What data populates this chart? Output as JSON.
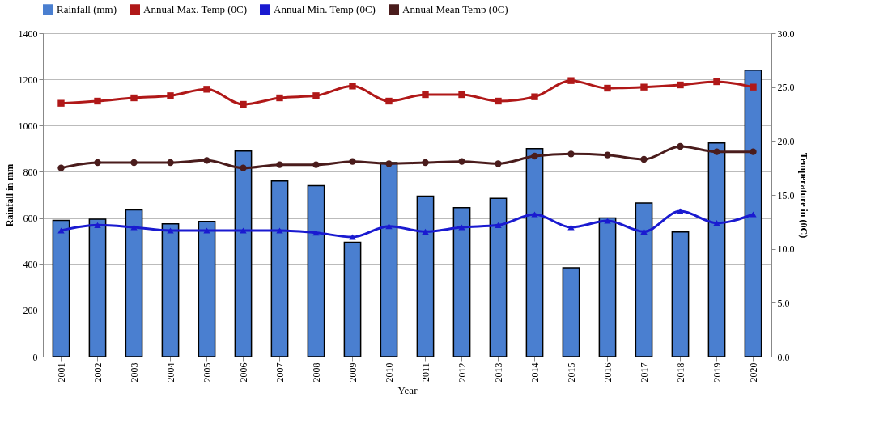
{
  "chart_data": {
    "type": "bar",
    "xlabel": "Year",
    "ylabel": "Rainfall in mm",
    "y2label": "Temperature in (0C)",
    "categories": [
      "2001",
      "2002",
      "2003",
      "2004",
      "2005",
      "2006",
      "2007",
      "2008",
      "2009",
      "2010",
      "2011",
      "2012",
      "2013",
      "2014",
      "2015",
      "2016",
      "2017",
      "2018",
      "2019",
      "2020"
    ],
    "series": [
      {
        "name": "Rainfall (mm)",
        "color": "#4a7fd0",
        "values": [
          590,
          595,
          635,
          575,
          585,
          890,
          760,
          740,
          495,
          840,
          695,
          645,
          685,
          900,
          385,
          600,
          665,
          540,
          925,
          1240
        ]
      },
      {
        "name": "Annual Max. Temp (0C)",
        "type": "line",
        "axis": "y2",
        "marker": "square",
        "color": "#b01818",
        "values": [
          23.5,
          23.7,
          24.0,
          24.2,
          24.8,
          23.4,
          24.0,
          24.2,
          25.1,
          23.7,
          24.3,
          24.3,
          23.7,
          24.1,
          25.6,
          24.9,
          25.0,
          25.2,
          25.5,
          25.0
        ]
      },
      {
        "name": "Annual Min. Temp (0C)",
        "type": "line",
        "axis": "y2",
        "marker": "triangle",
        "color": "#1a1ad0",
        "values": [
          11.7,
          12.2,
          12.0,
          11.7,
          11.7,
          11.7,
          11.7,
          11.5,
          11.1,
          12.1,
          11.6,
          12.0,
          12.2,
          13.2,
          12.0,
          12.6,
          11.6,
          13.5,
          12.4,
          13.2
        ]
      },
      {
        "name": "Annual Mean Temp (0C)",
        "type": "line",
        "axis": "y2",
        "marker": "circle",
        "color": "#4a1c1c",
        "values": [
          17.5,
          18.0,
          18.0,
          18.0,
          18.2,
          17.5,
          17.8,
          17.8,
          18.1,
          17.9,
          18.0,
          18.1,
          17.9,
          18.6,
          18.8,
          18.7,
          18.3,
          19.5,
          19.0,
          19.0
        ]
      }
    ],
    "ylim": [
      0,
      1400
    ],
    "yticks": [
      0,
      200,
      400,
      600,
      800,
      1000,
      1200,
      1400
    ],
    "y2lim": [
      0,
      30
    ],
    "y2ticks": [
      {
        "value": 0,
        "label": "0.0"
      },
      {
        "value": 5,
        "label": "5.0"
      },
      {
        "value": 10,
        "label": "10.0"
      },
      {
        "value": 15,
        "label": "15.0"
      },
      {
        "value": 20,
        "label": "20.0"
      },
      {
        "value": 25,
        "label": "25.0"
      },
      {
        "value": 30,
        "label": "30.0"
      }
    ],
    "grid": "y",
    "legend": "top"
  }
}
